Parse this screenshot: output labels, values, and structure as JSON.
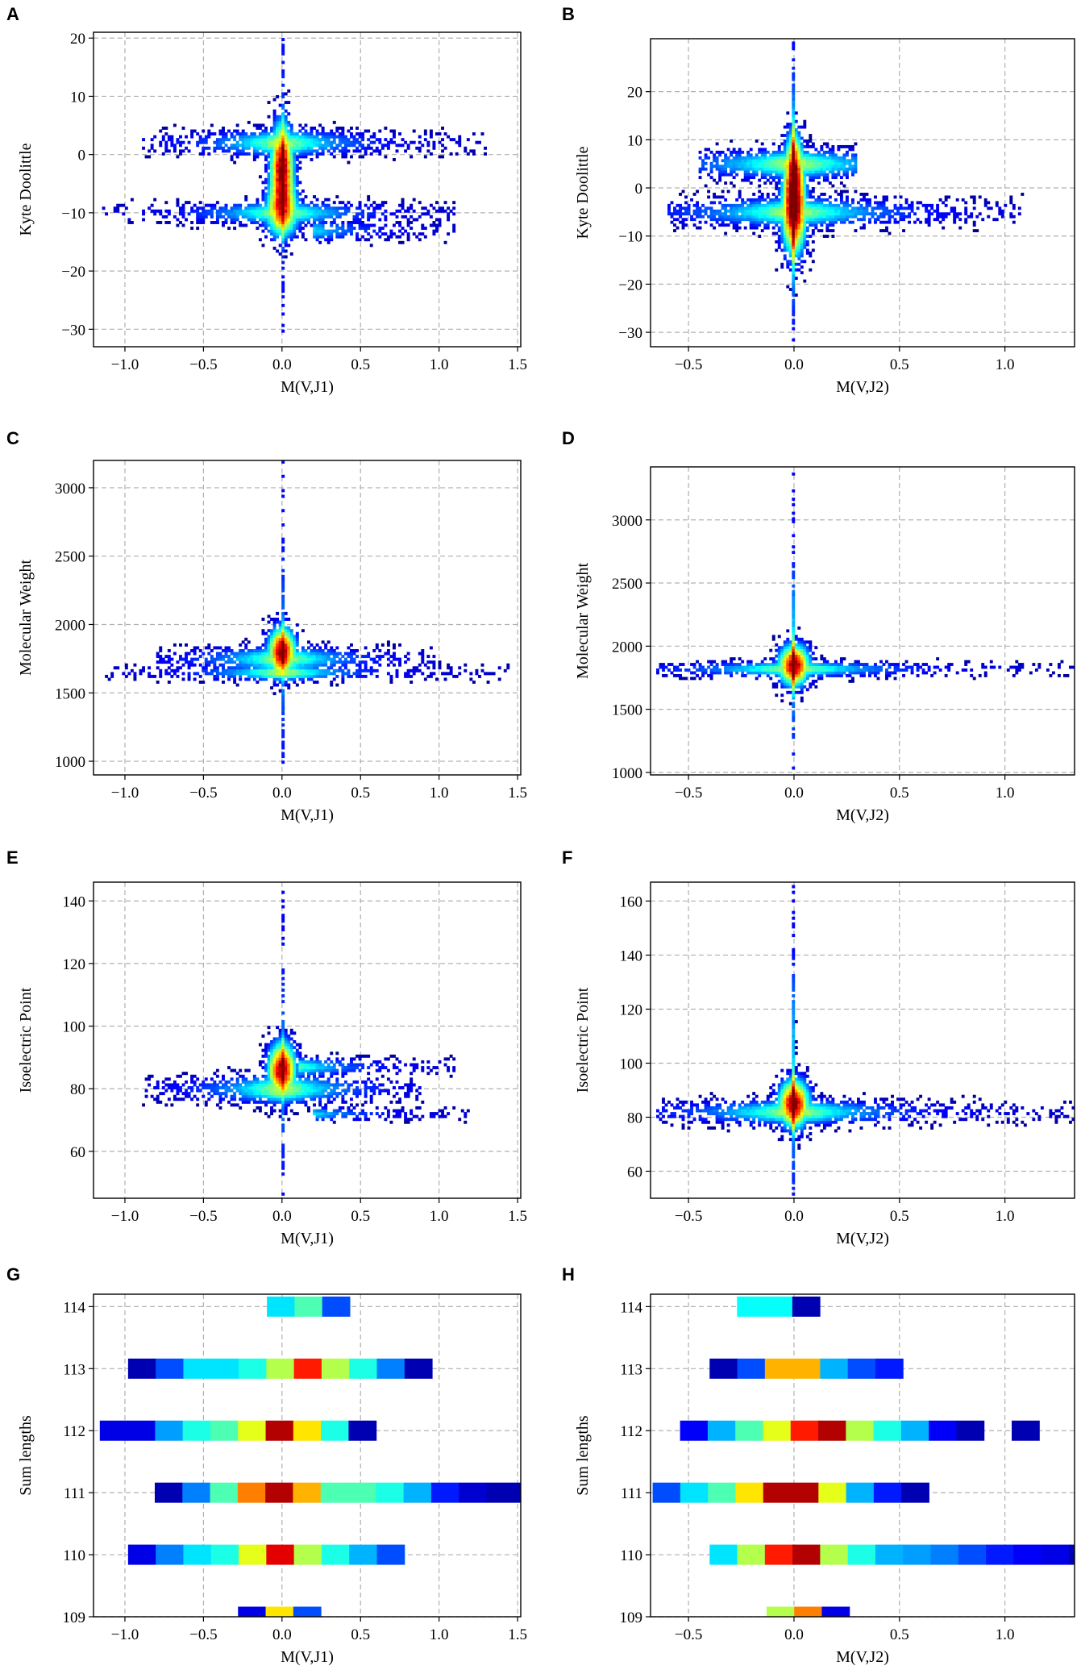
{
  "figure": {
    "description_labels": [
      "A",
      "B",
      "C",
      "D",
      "E",
      "F",
      "G",
      "H"
    ]
  },
  "chart_data": [
    {
      "panel": "A",
      "type": "heatmap",
      "xlabel": "M(V,J1)",
      "ylabel": "Kyte Doolittle",
      "xlim": [
        -1.2,
        1.52
      ],
      "ylim": [
        -33,
        21
      ],
      "xticks": [
        -1.0,
        -0.5,
        0.0,
        0.5,
        1.0,
        1.5
      ],
      "xtick_labels": [
        "−1.0",
        "−0.5",
        "0.0",
        "0.5",
        "1.0",
        "1.5"
      ],
      "yticks": [
        -30,
        -20,
        -10,
        0,
        10,
        20
      ],
      "ytick_labels": [
        "−30",
        "−20",
        "−10",
        "0",
        "10",
        "20"
      ],
      "density_clusters": [
        {
          "x": 0.0,
          "y": -2,
          "sx": 0.05,
          "sy": 5,
          "peak": 1.0
        },
        {
          "x": 0.0,
          "y": -10,
          "sx": 0.08,
          "sy": 3,
          "peak": 0.6
        },
        {
          "x": 0.0,
          "y": -5,
          "sx": 0.004,
          "sy": 16,
          "peak": 0.45
        }
      ],
      "density_bands": [
        {
          "y": 2,
          "x0": -0.9,
          "x1": 1.3,
          "sy": 1.5
        },
        {
          "y": -10,
          "x0": -1.15,
          "x1": 1.1,
          "sy": 1.3
        },
        {
          "y": -13,
          "x0": 0.2,
          "x1": 1.1,
          "sy": 1.2
        }
      ]
    },
    {
      "panel": "B",
      "type": "heatmap",
      "xlabel": "M(V,J2)",
      "ylabel": "Kyte Doolittle",
      "xlim": [
        -0.68,
        1.33
      ],
      "ylim": [
        -33,
        31
      ],
      "xticks": [
        -0.5,
        0.0,
        0.5,
        1.0
      ],
      "xtick_labels": [
        "−0.5",
        "0.0",
        "0.5",
        "1.0"
      ],
      "yticks": [
        -30,
        -20,
        -10,
        0,
        10,
        20
      ],
      "ytick_labels": [
        "−30",
        "−20",
        "−10",
        "0",
        "10",
        "20"
      ],
      "density_clusters": [
        {
          "x": 0.0,
          "y": -5,
          "sx": 0.04,
          "sy": 6,
          "peak": 1.0
        },
        {
          "x": 0.0,
          "y": 5,
          "sx": 0.03,
          "sy": 5,
          "peak": 0.7
        },
        {
          "x": 0.0,
          "y": 0,
          "sx": 0.004,
          "sy": 22,
          "peak": 0.45
        }
      ],
      "density_bands": [
        {
          "y": -5,
          "x0": -0.6,
          "x1": 1.1,
          "sy": 2.0
        },
        {
          "y": 5,
          "x0": -0.45,
          "x1": 0.3,
          "sy": 2.0
        }
      ]
    },
    {
      "panel": "C",
      "type": "heatmap",
      "xlabel": "M(V,J1)",
      "ylabel": "Molecular Weight",
      "xlim": [
        -1.2,
        1.52
      ],
      "ylim": [
        900,
        3200
      ],
      "xticks": [
        -1.0,
        -0.5,
        0.0,
        0.5,
        1.0,
        1.5
      ],
      "xtick_labels": [
        "−1.0",
        "−0.5",
        "0.0",
        "0.5",
        "1.0",
        "1.5"
      ],
      "yticks": [
        1000,
        1500,
        2000,
        2500,
        3000
      ],
      "ytick_labels": [
        "1000",
        "1500",
        "2000",
        "2500",
        "3000"
      ],
      "density_clusters": [
        {
          "x": 0.0,
          "y": 1800,
          "sx": 0.06,
          "sy": 120,
          "peak": 1.0
        },
        {
          "x": 0.0,
          "y": 1900,
          "sx": 0.004,
          "sy": 450,
          "peak": 0.45
        }
      ],
      "density_bands": [
        {
          "y": 1750,
          "x0": -0.8,
          "x1": 1.0,
          "sy": 60
        },
        {
          "y": 1650,
          "x0": -1.15,
          "x1": 1.5,
          "sy": 40
        }
      ]
    },
    {
      "panel": "D",
      "type": "heatmap",
      "xlabel": "M(V,J2)",
      "ylabel": "Molecular Weight",
      "xlim": [
        -0.68,
        1.33
      ],
      "ylim": [
        980,
        3420
      ],
      "xticks": [
        -0.5,
        0.0,
        0.5,
        1.0
      ],
      "xtick_labels": [
        "−0.5",
        "0.0",
        "0.5",
        "1.0"
      ],
      "yticks": [
        1000,
        1500,
        2000,
        2500,
        3000
      ],
      "ytick_labels": [
        "1000",
        "1500",
        "2000",
        "2500",
        "3000"
      ],
      "density_clusters": [
        {
          "x": 0.0,
          "y": 1850,
          "sx": 0.05,
          "sy": 110,
          "peak": 1.0
        },
        {
          "x": 0.0,
          "y": 2000,
          "sx": 0.004,
          "sy": 550,
          "peak": 0.45
        }
      ],
      "density_bands": [
        {
          "y": 1820,
          "x0": -0.65,
          "x1": 1.33,
          "sy": 40
        }
      ]
    },
    {
      "panel": "E",
      "type": "heatmap",
      "xlabel": "M(V,J1)",
      "ylabel": "Isoelectric Point",
      "xlim": [
        -1.2,
        1.52
      ],
      "ylim": [
        45,
        146
      ],
      "xticks": [
        -1.0,
        -0.5,
        0.0,
        0.5,
        1.0,
        1.5
      ],
      "xtick_labels": [
        "−1.0",
        "−0.5",
        "0.0",
        "0.5",
        "1.0",
        "1.5"
      ],
      "yticks": [
        60,
        80,
        100,
        120,
        140
      ],
      "ytick_labels": [
        "60",
        "80",
        "100",
        "120",
        "140"
      ],
      "density_clusters": [
        {
          "x": 0.0,
          "y": 86,
          "sx": 0.06,
          "sy": 6,
          "peak": 1.0
        },
        {
          "x": 0.0,
          "y": 95,
          "sx": 0.004,
          "sy": 25,
          "peak": 0.45
        }
      ],
      "density_bands": [
        {
          "y": 80,
          "x0": -0.9,
          "x1": 0.9,
          "sy": 3
        },
        {
          "y": 87,
          "x0": 0.1,
          "x1": 1.1,
          "sy": 2
        },
        {
          "y": 72,
          "x0": 0.2,
          "x1": 1.2,
          "sy": 1.5
        }
      ]
    },
    {
      "panel": "F",
      "type": "heatmap",
      "xlabel": "M(V,J2)",
      "ylabel": "Isoelectric Point",
      "xlim": [
        -0.68,
        1.33
      ],
      "ylim": [
        50,
        167
      ],
      "xticks": [
        -0.5,
        0.0,
        0.5,
        1.0
      ],
      "xtick_labels": [
        "−0.5",
        "0.0",
        "0.5",
        "1.0"
      ],
      "yticks": [
        60,
        80,
        100,
        120,
        140,
        160
      ],
      "ytick_labels": [
        "60",
        "80",
        "100",
        "120",
        "140",
        "160"
      ],
      "density_clusters": [
        {
          "x": 0.0,
          "y": 85,
          "sx": 0.05,
          "sy": 6,
          "peak": 1.0
        },
        {
          "x": 0.0,
          "y": 100,
          "sx": 0.004,
          "sy": 30,
          "peak": 0.45
        }
      ],
      "density_bands": [
        {
          "y": 82,
          "x0": -0.65,
          "x1": 1.33,
          "sy": 3
        }
      ]
    },
    {
      "panel": "G",
      "type": "heatmap",
      "xlabel": "M(V,J1)",
      "ylabel": "Sum lengths",
      "xlim": [
        -1.2,
        1.52
      ],
      "ylim": [
        109,
        114.2
      ],
      "xticks": [
        -1.0,
        -0.5,
        0.0,
        0.5,
        1.0,
        1.5
      ],
      "xtick_labels": [
        "−1.0",
        "−0.5",
        "0.0",
        "0.5",
        "1.0",
        "1.5"
      ],
      "yticks": [
        109,
        110,
        111,
        112,
        113,
        114
      ],
      "ytick_labels": [
        "109",
        "110",
        "111",
        "112",
        "113",
        "114"
      ],
      "bin_width": 0.176,
      "rows": [
        {
          "y": 114,
          "x0": -0.096,
          "values": [
            0.35,
            0.45,
            0.2
          ]
        },
        {
          "y": 113,
          "x0": -0.98,
          "values": [
            0.05,
            0.2,
            0.35,
            0.35,
            0.4,
            0.55,
            0.85,
            0.55,
            0.4,
            0.25,
            0.05
          ]
        },
        {
          "y": 112,
          "x0": -1.16,
          "values": [
            0.1,
            0.1,
            0.28,
            0.4,
            0.45,
            0.6,
            0.95,
            0.65,
            0.4,
            0.05
          ]
        },
        {
          "y": 111,
          "x0": -0.81,
          "values": [
            0.05,
            0.25,
            0.45,
            0.75,
            0.95,
            0.7,
            0.45,
            0.45,
            0.4,
            0.3,
            0.15,
            0.08,
            0.05,
            0.05
          ]
        },
        {
          "y": 110,
          "x0": -0.98,
          "values": [
            0.1,
            0.25,
            0.35,
            0.4,
            0.6,
            0.9,
            0.55,
            0.4,
            0.3,
            0.2
          ]
        },
        {
          "y": 109,
          "x0": -0.28,
          "values": [
            0.1,
            0.65,
            0.2
          ]
        }
      ]
    },
    {
      "panel": "H",
      "type": "heatmap",
      "xlabel": "M(V,J2)",
      "ylabel": "Sum lengths",
      "xlim": [
        -0.68,
        1.33
      ],
      "ylim": [
        109,
        114.2
      ],
      "xticks": [
        -0.5,
        0.0,
        0.5,
        1.0
      ],
      "xtick_labels": [
        "−0.5",
        "0.0",
        "0.5",
        "1.0"
      ],
      "yticks": [
        109,
        110,
        111,
        112,
        113,
        114
      ],
      "ytick_labels": [
        "109",
        "110",
        "111",
        "112",
        "113",
        "114"
      ],
      "bin_width": 0.131,
      "rows": [
        {
          "y": 114,
          "x0": -0.27,
          "values": [
            0.38,
            0.38,
            0.05
          ]
        },
        {
          "y": 113,
          "x0": -0.4,
          "values": [
            0.05,
            0.2,
            0.7,
            0.7,
            0.3,
            0.2,
            0.15
          ]
        },
        {
          "y": 112,
          "x0": -0.54,
          "values": [
            0.12,
            0.3,
            0.45,
            0.6,
            0.85,
            0.95,
            0.55,
            0.4,
            0.3,
            0.12,
            0.05,
            null,
            0.05
          ]
        },
        {
          "y": 111,
          "x0": -0.67,
          "values": [
            0.2,
            0.35,
            0.45,
            0.65,
            0.95,
            0.95,
            0.6,
            0.3,
            0.15,
            0.05
          ]
        },
        {
          "y": 110,
          "x0": -0.4,
          "values": [
            0.35,
            0.55,
            0.85,
            0.95,
            0.55,
            0.4,
            0.3,
            0.28,
            0.25,
            0.2,
            0.15,
            0.12,
            0.1,
            0.05
          ]
        },
        {
          "y": 109,
          "x0": -0.13,
          "values": [
            0.55,
            0.75,
            0.1
          ]
        }
      ]
    }
  ]
}
